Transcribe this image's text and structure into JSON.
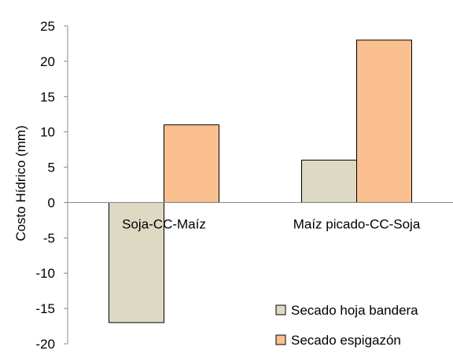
{
  "chart_data": {
    "type": "bar",
    "categories": [
      "Soja-CC-Maíz",
      "Maíz picado-CC-Soja"
    ],
    "series": [
      {
        "name": "Secado hoja bandera",
        "values": [
          -17,
          6
        ],
        "color": "#DDD9C3"
      },
      {
        "name": "Secado espigazón",
        "values": [
          11,
          23
        ],
        "color": "#FAC090"
      }
    ],
    "title": "",
    "xlabel": "",
    "ylabel": "Costo Hídrico (mm)",
    "ylim": [
      -20,
      25
    ],
    "yticks": [
      25,
      20,
      15,
      10,
      5,
      0,
      -5,
      -10,
      -15,
      -20
    ],
    "grid": false,
    "legend_position": "bottom-right"
  }
}
